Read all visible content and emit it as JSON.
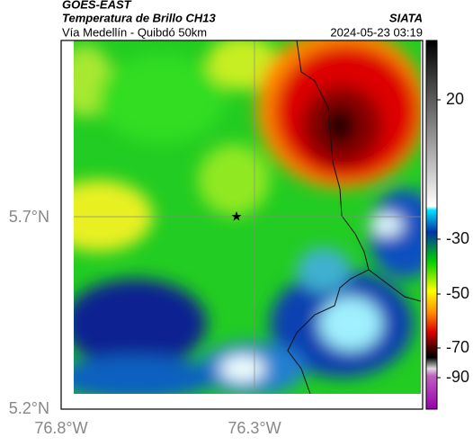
{
  "header": {
    "title": "GOES-EAST",
    "subtitle": "Temperatura de Brillo CH13",
    "location": "Vía Medellín - Quibdó 50km",
    "source": "SIATA",
    "timestamp": "2024-05-23 03:19"
  },
  "map": {
    "lat_labels": [
      "5.7°N",
      "5.2°N"
    ],
    "lon_labels": [
      "76.8°W",
      "76.3°W"
    ]
  },
  "colorbar": {
    "labels": [
      "20",
      "-30",
      "-50",
      "-70",
      "-90"
    ]
  }
}
